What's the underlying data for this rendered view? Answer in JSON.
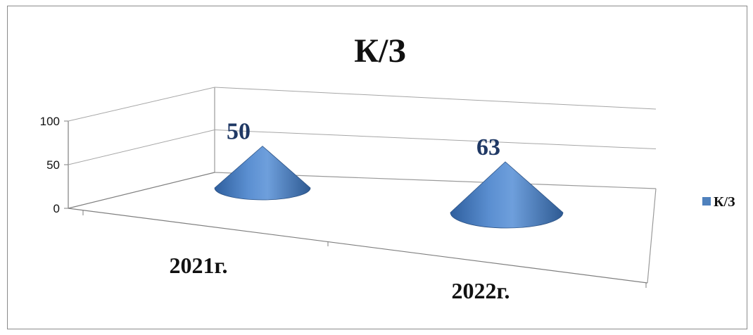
{
  "chart_data": {
    "type": "bar",
    "shape": "cone-3d",
    "title": "К/З",
    "categories": [
      "2021г.",
      "2022г."
    ],
    "series": [
      {
        "name": "К/З",
        "values": [
          50,
          63
        ]
      }
    ],
    "ylim": [
      0,
      100
    ],
    "yticks": [
      "0",
      "50",
      "100"
    ],
    "data_labels": [
      "50",
      "63"
    ],
    "grid": true,
    "legend": "right",
    "colors": {
      "series": "#4f81bd",
      "label": "#1f3864"
    }
  }
}
